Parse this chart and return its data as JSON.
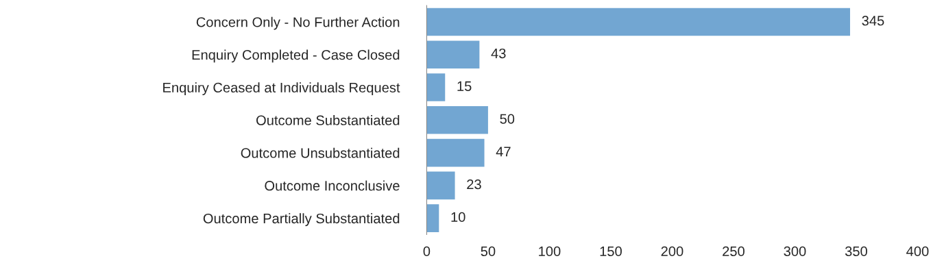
{
  "chart_data": {
    "type": "bar",
    "orientation": "horizontal",
    "categories": [
      "Concern Only - No Further Action",
      "Enquiry Completed - Case Closed",
      "Enquiry Ceased at Individuals Request",
      "Outcome Substantiated",
      "Outcome Unsubstantiated",
      "Outcome Inconclusive",
      "Outcome Partially Substantiated"
    ],
    "values": [
      345,
      43,
      15,
      50,
      47,
      23,
      10
    ],
    "color": "#72a6d2",
    "xlim": [
      0,
      400
    ],
    "xticks": [
      0,
      50,
      100,
      150,
      200,
      250,
      300,
      350,
      400
    ],
    "data_labels": true,
    "grid": false,
    "legend": false
  }
}
